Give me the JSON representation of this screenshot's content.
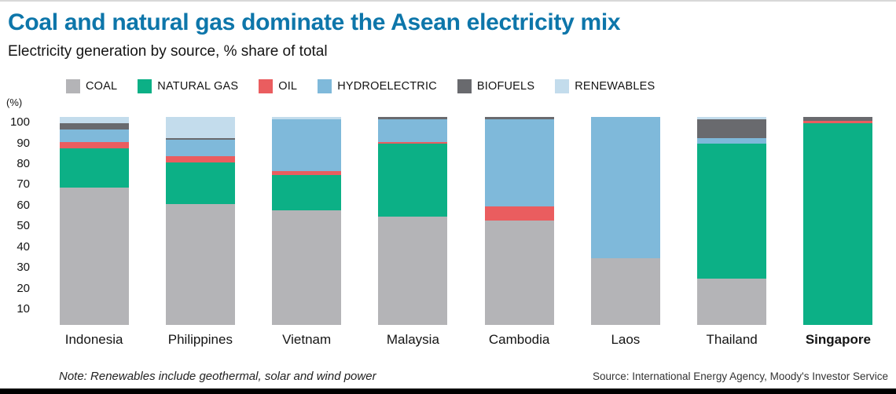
{
  "header": {
    "title": "Coal and natural gas dominate the Asean electricity mix",
    "subtitle": "Electricity generation by source, % share of total"
  },
  "chart_data": {
    "type": "bar",
    "stacked": true,
    "title": "Coal and natural gas dominate the Asean electricity mix",
    "subtitle": "Electricity generation by source, % share of total",
    "y_unit_label": "(%)",
    "legend_position": "top",
    "grid": false,
    "ylim": [
      0,
      104
    ],
    "yticks": [
      10,
      20,
      30,
      40,
      50,
      60,
      70,
      80,
      90,
      100
    ],
    "categories": [
      "Indonesia",
      "Philippines",
      "Vietnam",
      "Malaysia",
      "Cambodia",
      "Laos",
      "Thailand",
      "Singapore"
    ],
    "emphasized_category": "Singapore",
    "series": [
      {
        "name": "COAL",
        "color": "#b4b4b7",
        "values": [
          66,
          58,
          55,
          52,
          50,
          32,
          22,
          0
        ]
      },
      {
        "name": "NATURAL GAS",
        "color": "#0cb086",
        "values": [
          19,
          20,
          17,
          35,
          0,
          0,
          65,
          97
        ]
      },
      {
        "name": "OIL",
        "color": "#ea5d5f",
        "values": [
          3,
          3,
          2,
          1,
          7,
          0,
          0,
          1
        ]
      },
      {
        "name": "HYDROELECTRIC",
        "color": "#7fb9da",
        "values": [
          6,
          8,
          25,
          11,
          42,
          68,
          3,
          0
        ]
      },
      {
        "name": "BIOFUELS",
        "color": "#696a6e",
        "values": [
          3,
          1,
          0,
          1,
          1,
          0,
          9,
          2
        ]
      },
      {
        "name": "RENEWABLES",
        "color": "#c3dcec",
        "values": [
          3,
          10,
          1,
          0,
          0,
          0,
          1,
          0
        ]
      }
    ]
  },
  "footer": {
    "note": "Note: Renewables include geothermal, solar and wind power",
    "source": "Source: International Energy Agency, Moody's Investor Service"
  },
  "colors": {
    "title": "#0d76aa",
    "bottom_rule": "#000000"
  }
}
